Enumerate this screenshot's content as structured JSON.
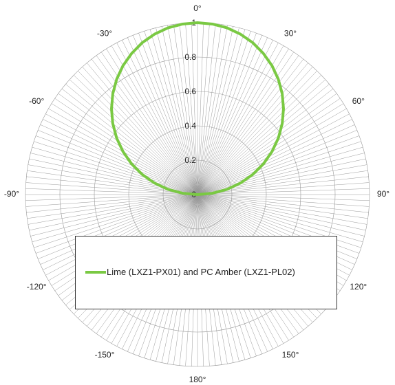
{
  "chart_data": {
    "type": "polar-line",
    "title": "",
    "angle_labels": [
      "0°",
      "30°",
      "60°",
      "90°",
      "120°",
      "150°",
      "180°",
      "-150°",
      "-120°",
      "-90°",
      "-60°",
      "-30°"
    ],
    "angle_label_values": [
      0,
      30,
      60,
      90,
      120,
      150,
      180,
      -150,
      -120,
      -90,
      -60,
      -30
    ],
    "angle_zero": "top",
    "angle_direction": "clockwise",
    "radial_tick_labels": [
      "0",
      "0.2",
      "0.4",
      "0.6",
      "0.8",
      "1"
    ],
    "radial_tick_values": [
      0,
      0.2,
      0.4,
      0.6,
      0.8,
      1
    ],
    "rlim": [
      0,
      1
    ],
    "angular_grid_step_deg": 2,
    "grid": true,
    "legend_placement": "bottom-center",
    "series": [
      {
        "name": "Lime (LXZ1-PX01) and PC Amber (LXZ1-PL02)",
        "color": "#7ac943",
        "theta_deg": [
          -90,
          -85,
          -80,
          -75,
          -70,
          -65,
          -60,
          -55,
          -50,
          -45,
          -40,
          -35,
          -30,
          -25,
          -20,
          -15,
          -10,
          -5,
          0,
          5,
          10,
          15,
          20,
          25,
          30,
          35,
          40,
          45,
          50,
          55,
          60,
          65,
          70,
          75,
          80,
          85,
          90
        ],
        "r": [
          0.0,
          0.087,
          0.174,
          0.259,
          0.342,
          0.423,
          0.5,
          0.574,
          0.643,
          0.707,
          0.766,
          0.819,
          0.866,
          0.906,
          0.94,
          0.966,
          0.985,
          0.996,
          1.0,
          0.996,
          0.985,
          0.966,
          0.94,
          0.906,
          0.866,
          0.819,
          0.766,
          0.707,
          0.643,
          0.574,
          0.5,
          0.423,
          0.342,
          0.259,
          0.174,
          0.087,
          0.0
        ]
      }
    ]
  },
  "colors": {
    "grid": "#999999",
    "axis_text": "#222222",
    "legend_border": "#333333"
  }
}
